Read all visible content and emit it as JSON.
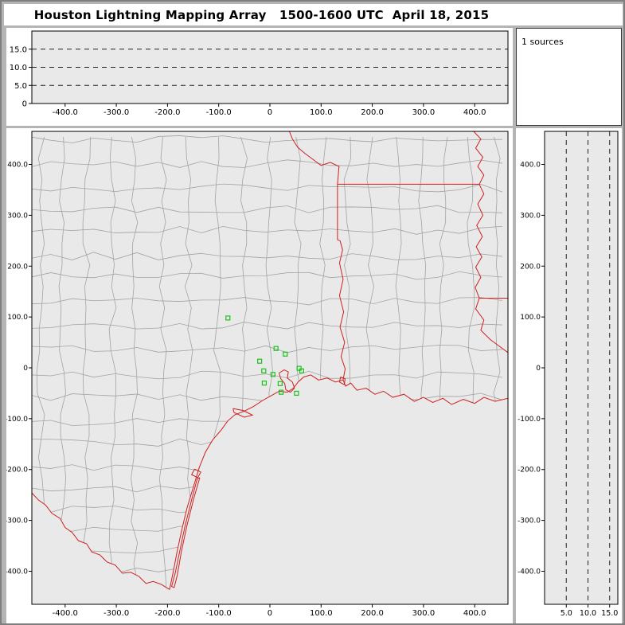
{
  "title": "Houston Lightning Mapping Array   1500-1600 UTC  April 18, 2015",
  "sources_panel": {
    "label": "1 sources"
  },
  "colors": {
    "plot_bg": "#e9e9e9",
    "window_frame": "#b4b4b4",
    "border_red": "#cf1f1f",
    "county_gray": "#a3a3a3",
    "station_green": "#17c417",
    "axis_black": "#000000"
  },
  "chart_data": [
    {
      "name": "altitude_vs_ew",
      "type": "scatter",
      "x_range_km": [
        -465,
        465
      ],
      "alt_range_km": [
        0,
        20
      ],
      "x_ticks": {
        "values": [
          -400,
          -300,
          -200,
          -100,
          0,
          100,
          200,
          300,
          400
        ],
        "labels": [
          "-400.0",
          "-300.0",
          "-200.0",
          "-100.0",
          "0",
          "100.0",
          "200.0",
          "300.0",
          "400.0"
        ]
      },
      "alt_ticks": {
        "values": [
          0,
          5,
          10,
          15
        ],
        "labels": [
          "0",
          "5.0",
          "10.0",
          "15.0"
        ]
      },
      "gridlines_alt_km": [
        5,
        10,
        15
      ],
      "points": []
    },
    {
      "name": "source_histogram",
      "type": "histogram",
      "label": "1 sources",
      "points": []
    },
    {
      "name": "plan_view",
      "type": "scatter",
      "x_range_km": [
        -465,
        465
      ],
      "y_range_km": [
        -465,
        465
      ],
      "x_ticks": {
        "values": [
          -400,
          -300,
          -200,
          -100,
          0,
          100,
          200,
          300,
          400
        ],
        "labels": [
          "-400.0",
          "-300.0",
          "-200.0",
          "-100.0",
          "0",
          "100.0",
          "200.0",
          "300.0",
          "400.0"
        ]
      },
      "y_ticks": {
        "values": [
          400,
          300,
          200,
          100,
          0,
          -100,
          -200,
          -300,
          -400
        ],
        "labels": [
          "400.0",
          "300.0",
          "200.0",
          "100.0",
          "0",
          "-100.0",
          "-200.0",
          "-300.0",
          "-400.0"
        ]
      },
      "stations_km": [
        [
          -82,
          98
        ],
        [
          12,
          38
        ],
        [
          30,
          27
        ],
        [
          -20,
          13
        ],
        [
          -12,
          -6
        ],
        [
          6,
          -13
        ],
        [
          57,
          -1
        ],
        [
          62,
          -6
        ],
        [
          20,
          -31
        ],
        [
          -11,
          -30
        ],
        [
          22,
          -48
        ],
        [
          52,
          -50
        ]
      ],
      "points": []
    },
    {
      "name": "altitude_vs_ns",
      "type": "scatter",
      "alt_range_km": [
        0,
        17
      ],
      "y_range_km": [
        -465,
        465
      ],
      "alt_ticks": {
        "values": [
          5,
          10,
          15
        ],
        "labels": [
          "5.0",
          "10.0",
          "15.0"
        ]
      },
      "y_ticks": {
        "values": [
          400,
          300,
          200,
          100,
          0,
          -100,
          -200,
          -300,
          -400
        ],
        "labels": [
          "400.0",
          "300.0",
          "200.0",
          "100.0",
          "0",
          "-100.0",
          "-200.0",
          "-300.0",
          "-400.0"
        ]
      },
      "gridlines_alt_km": [
        5,
        10,
        15
      ],
      "points": []
    }
  ]
}
